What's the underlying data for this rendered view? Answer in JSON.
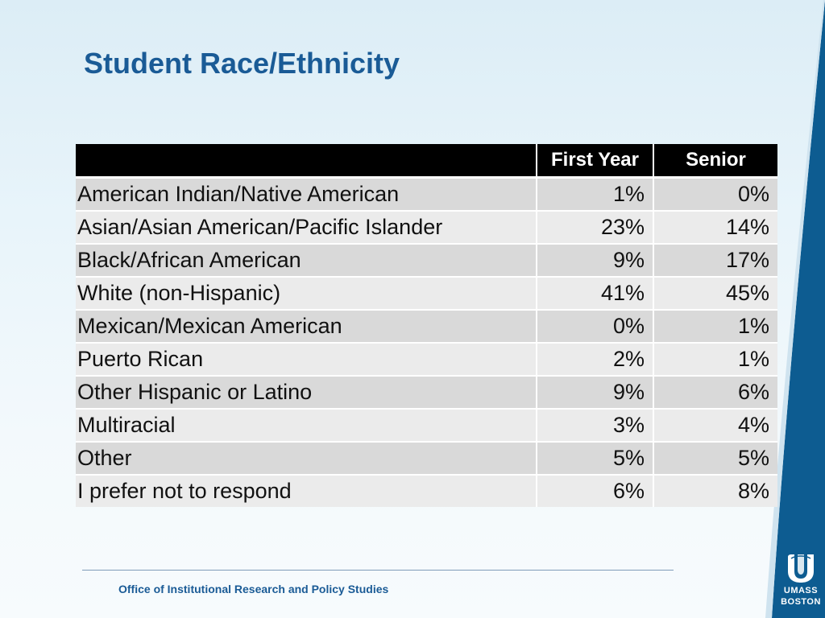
{
  "title": "Student Race/Ethnicity",
  "table": {
    "headers": [
      "",
      "First Year",
      "Senior"
    ],
    "rows": [
      {
        "label": "American Indian/Native American",
        "first_year": "1%",
        "senior": "0%"
      },
      {
        "label": "Asian/Asian American/Pacific Islander",
        "first_year": "23%",
        "senior": "14%"
      },
      {
        "label": "Black/African American",
        "first_year": "9%",
        "senior": "17%"
      },
      {
        "label": "White (non-Hispanic)",
        "first_year": "41%",
        "senior": "45%"
      },
      {
        "label": "Mexican/Mexican American",
        "first_year": "0%",
        "senior": "1%"
      },
      {
        "label": "Puerto Rican",
        "first_year": "2%",
        "senior": "1%"
      },
      {
        "label": "Other Hispanic or Latino",
        "first_year": "9%",
        "senior": "6%"
      },
      {
        "label": "Multiracial",
        "first_year": "3%",
        "senior": "4%"
      },
      {
        "label": "Other",
        "first_year": "5%",
        "senior": "5%"
      },
      {
        "label": "I prefer not to respond",
        "first_year": "6%",
        "senior": "8%"
      }
    ]
  },
  "footer": {
    "text": "Office of Institutional Research and Policy Studies"
  },
  "logo": {
    "line1": "UMASS",
    "line2": "BOSTON"
  },
  "colors": {
    "title": "#1a5b96",
    "band": "#0d5c91",
    "header_bg": "#000000",
    "row_odd": "#d9d9d9",
    "row_even": "#ebebeb"
  }
}
